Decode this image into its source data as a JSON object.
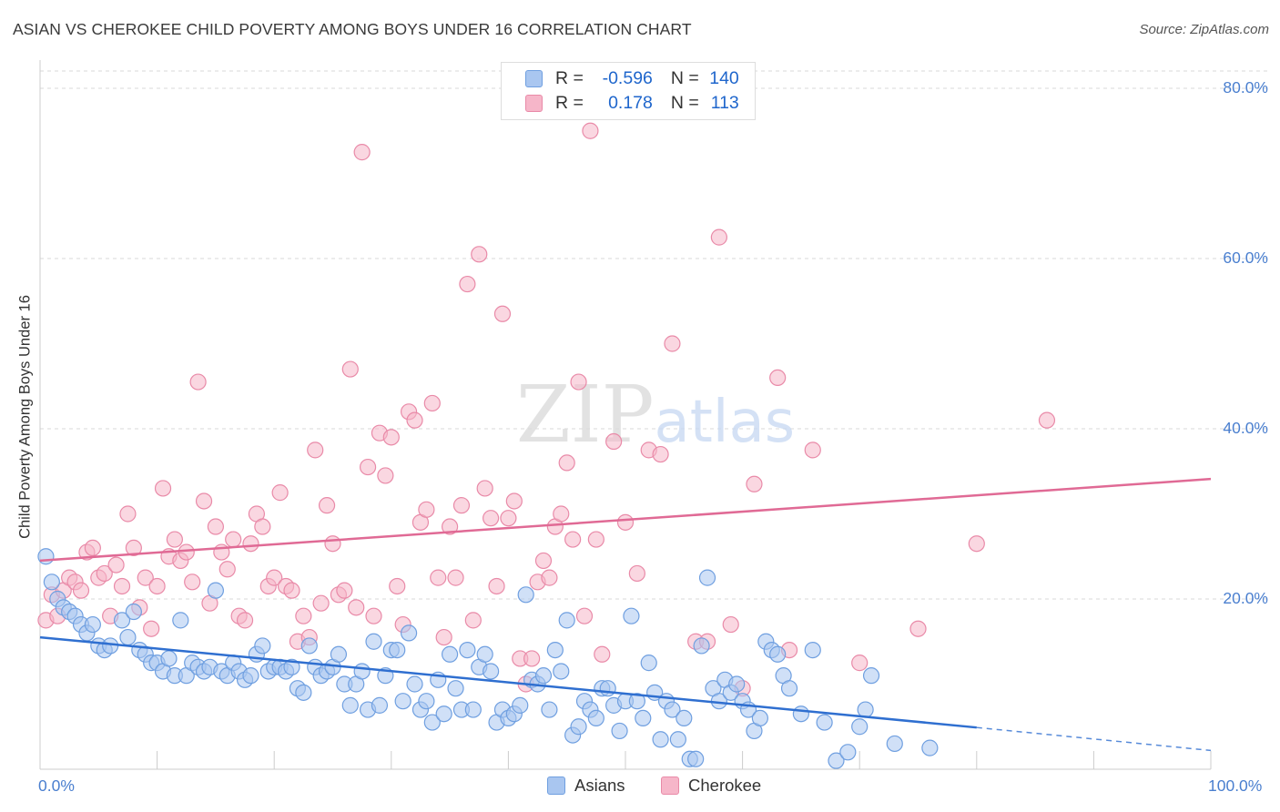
{
  "title": "ASIAN VS CHEROKEE CHILD POVERTY AMONG BOYS UNDER 16 CORRELATION CHART",
  "source": "Source: ZipAtlas.com",
  "legend": {
    "rows": [
      {
        "r_label": "R =",
        "r_value": "-0.596",
        "n_label": "N =",
        "n_value": "140"
      },
      {
        "r_label": "R =",
        "r_value": "0.178",
        "n_label": "N =",
        "n_value": "113"
      }
    ]
  },
  "colors": {
    "asians_fill": "#a9c6f0",
    "asians_stroke": "#6f9fe0",
    "asians_line": "#2f6fd0",
    "cherokee_fill": "#f6b6c9",
    "cherokee_stroke": "#e98aa8",
    "cherokee_line": "#e06a95",
    "tick_label": "#4a7fcf",
    "grid": "#d9d9d9"
  },
  "chart_data": {
    "type": "scatter",
    "title": "ASIAN VS CHEROKEE CHILD POVERTY AMONG BOYS UNDER 16 CORRELATION CHART",
    "xlabel": "",
    "ylabel": "Child Poverty Among Boys Under 16",
    "xlim": [
      0,
      100
    ],
    "ylim": [
      0,
      80
    ],
    "x_tick_labels": [
      "0.0%",
      "100.0%"
    ],
    "y_ticks": [
      20,
      40,
      60,
      80
    ],
    "y_tick_labels": [
      "20.0%",
      "40.0%",
      "60.0%",
      "80.0%"
    ],
    "grid": true,
    "legend_position": "bottom",
    "watermark": "ZIPatlas",
    "series": [
      {
        "name": "Asians",
        "r": -0.596,
        "n": 140,
        "trend": {
          "x0": 0,
          "y0": 15.5,
          "x1": 80,
          "y1": 4.9,
          "dashed_to": [
            100,
            2.2
          ]
        },
        "points": [
          [
            0.5,
            25
          ],
          [
            1,
            22
          ],
          [
            1.5,
            20
          ],
          [
            2,
            19
          ],
          [
            2.5,
            18.5
          ],
          [
            3,
            18
          ],
          [
            3.5,
            17
          ],
          [
            4,
            16
          ],
          [
            4.5,
            17
          ],
          [
            5,
            14.5
          ],
          [
            5.5,
            14
          ],
          [
            6,
            14.5
          ],
          [
            7,
            17.5
          ],
          [
            7.5,
            15.5
          ],
          [
            8,
            18.5
          ],
          [
            8.5,
            14
          ],
          [
            9,
            13.5
          ],
          [
            9.5,
            12.5
          ],
          [
            10,
            12.5
          ],
          [
            10.5,
            11.5
          ],
          [
            11,
            13
          ],
          [
            11.5,
            11
          ],
          [
            12,
            17.5
          ],
          [
            12.5,
            11
          ],
          [
            13,
            12.5
          ],
          [
            13.5,
            12
          ],
          [
            14,
            11.5
          ],
          [
            14.5,
            12
          ],
          [
            15,
            21
          ],
          [
            15.5,
            11.5
          ],
          [
            16,
            11
          ],
          [
            16.5,
            12.5
          ],
          [
            17,
            11.5
          ],
          [
            17.5,
            10.5
          ],
          [
            18,
            11
          ],
          [
            18.5,
            13.5
          ],
          [
            19,
            14.5
          ],
          [
            19.5,
            11.5
          ],
          [
            20,
            12
          ],
          [
            20.5,
            12
          ],
          [
            21,
            11.5
          ],
          [
            21.5,
            12
          ],
          [
            22,
            9.5
          ],
          [
            22.5,
            9
          ],
          [
            23,
            14.5
          ],
          [
            23.5,
            12
          ],
          [
            24,
            11
          ],
          [
            24.5,
            11.5
          ],
          [
            25,
            12
          ],
          [
            25.5,
            13.5
          ],
          [
            26,
            10
          ],
          [
            26.5,
            7.5
          ],
          [
            27,
            10
          ],
          [
            27.5,
            11.5
          ],
          [
            28,
            7
          ],
          [
            28.5,
            15
          ],
          [
            29,
            7.5
          ],
          [
            29.5,
            11
          ],
          [
            30,
            14
          ],
          [
            30.5,
            14
          ],
          [
            31,
            8
          ],
          [
            31.5,
            16
          ],
          [
            32,
            10
          ],
          [
            32.5,
            7
          ],
          [
            33,
            8
          ],
          [
            33.5,
            5.5
          ],
          [
            34,
            10.5
          ],
          [
            34.5,
            6.5
          ],
          [
            35,
            13.5
          ],
          [
            35.5,
            9.5
          ],
          [
            36,
            7
          ],
          [
            36.5,
            14
          ],
          [
            37,
            7
          ],
          [
            37.5,
            12
          ],
          [
            38,
            13.5
          ],
          [
            38.5,
            11.5
          ],
          [
            39,
            5.5
          ],
          [
            39.5,
            7
          ],
          [
            40,
            6
          ],
          [
            40.5,
            6.5
          ],
          [
            41,
            7.5
          ],
          [
            41.5,
            20.5
          ],
          [
            42,
            10.5
          ],
          [
            42.5,
            10
          ],
          [
            43,
            11
          ],
          [
            43.5,
            7
          ],
          [
            44,
            14
          ],
          [
            44.5,
            11.5
          ],
          [
            45,
            17.5
          ],
          [
            45.5,
            4
          ],
          [
            46,
            5
          ],
          [
            46.5,
            8
          ],
          [
            47,
            7
          ],
          [
            47.5,
            6
          ],
          [
            48,
            9.5
          ],
          [
            48.5,
            9.5
          ],
          [
            49,
            7.5
          ],
          [
            49.5,
            4.5
          ],
          [
            50,
            8
          ],
          [
            50.5,
            18
          ],
          [
            51,
            8
          ],
          [
            51.5,
            6
          ],
          [
            52,
            12.5
          ],
          [
            52.5,
            9
          ],
          [
            53,
            3.5
          ],
          [
            53.5,
            8
          ],
          [
            54,
            7
          ],
          [
            54.5,
            3.5
          ],
          [
            55,
            6
          ],
          [
            55.5,
            1.2
          ],
          [
            56,
            1.2
          ],
          [
            56.5,
            14.5
          ],
          [
            57,
            22.5
          ],
          [
            57.5,
            9.5
          ],
          [
            58,
            8
          ],
          [
            58.5,
            10.5
          ],
          [
            59,
            9
          ],
          [
            59.5,
            10
          ],
          [
            60,
            8
          ],
          [
            60.5,
            7
          ],
          [
            61,
            4.5
          ],
          [
            61.5,
            6
          ],
          [
            62,
            15
          ],
          [
            62.5,
            14
          ],
          [
            63,
            13.5
          ],
          [
            63.5,
            11
          ],
          [
            64,
            9.5
          ],
          [
            65,
            6.5
          ],
          [
            66,
            14
          ],
          [
            67,
            5.5
          ],
          [
            68,
            1
          ],
          [
            69,
            2
          ],
          [
            70,
            5
          ],
          [
            70.5,
            7
          ],
          [
            71,
            11
          ],
          [
            73,
            3
          ],
          [
            76,
            2.5
          ]
        ]
      },
      {
        "name": "Cherokee",
        "r": 0.178,
        "n": 113,
        "trend": {
          "x0": 0,
          "y0": 24.5,
          "x1": 100,
          "y1": 34.1
        },
        "points": [
          [
            0.5,
            17.5
          ],
          [
            1,
            20.5
          ],
          [
            1.5,
            18
          ],
          [
            2,
            21
          ],
          [
            2.5,
            22.5
          ],
          [
            3,
            22
          ],
          [
            3.5,
            21
          ],
          [
            4,
            25.5
          ],
          [
            4.5,
            26
          ],
          [
            5,
            22.5
          ],
          [
            5.5,
            23
          ],
          [
            6,
            18
          ],
          [
            6.5,
            24
          ],
          [
            7,
            21.5
          ],
          [
            7.5,
            30
          ],
          [
            8,
            26
          ],
          [
            8.5,
            19
          ],
          [
            9,
            22.5
          ],
          [
            9.5,
            16.5
          ],
          [
            10,
            21.5
          ],
          [
            10.5,
            33
          ],
          [
            11,
            25
          ],
          [
            11.5,
            27
          ],
          [
            12,
            24.5
          ],
          [
            12.5,
            25.5
          ],
          [
            13,
            22
          ],
          [
            13.5,
            45.5
          ],
          [
            14,
            31.5
          ],
          [
            14.5,
            19.5
          ],
          [
            15,
            28.5
          ],
          [
            15.5,
            25.5
          ],
          [
            16,
            23.5
          ],
          [
            16.5,
            27
          ],
          [
            17,
            18
          ],
          [
            17.5,
            17.5
          ],
          [
            18,
            26.5
          ],
          [
            18.5,
            30
          ],
          [
            19,
            28.5
          ],
          [
            19.5,
            21.5
          ],
          [
            20,
            22.5
          ],
          [
            20.5,
            32.5
          ],
          [
            21,
            21.5
          ],
          [
            21.5,
            21
          ],
          [
            22,
            15
          ],
          [
            22.5,
            18
          ],
          [
            23,
            15.5
          ],
          [
            23.5,
            37.5
          ],
          [
            24,
            19.5
          ],
          [
            24.5,
            31
          ],
          [
            25,
            26.5
          ],
          [
            25.5,
            20.5
          ],
          [
            26,
            21
          ],
          [
            26.5,
            47
          ],
          [
            27,
            19
          ],
          [
            27.5,
            72.5
          ],
          [
            28,
            35.5
          ],
          [
            28.5,
            18
          ],
          [
            29,
            39.5
          ],
          [
            29.5,
            34.5
          ],
          [
            30,
            39
          ],
          [
            30.5,
            21.5
          ],
          [
            31,
            17
          ],
          [
            31.5,
            42
          ],
          [
            32,
            41
          ],
          [
            32.5,
            29
          ],
          [
            33,
            30.5
          ],
          [
            33.5,
            43
          ],
          [
            34,
            22.5
          ],
          [
            34.5,
            15.5
          ],
          [
            35,
            28.5
          ],
          [
            35.5,
            22.5
          ],
          [
            36,
            31
          ],
          [
            36.5,
            57
          ],
          [
            37,
            17.5
          ],
          [
            37.5,
            60.5
          ],
          [
            38,
            33
          ],
          [
            38.5,
            29.5
          ],
          [
            39,
            21.5
          ],
          [
            39.5,
            53.5
          ],
          [
            40,
            29.5
          ],
          [
            40.5,
            31.5
          ],
          [
            41,
            13
          ],
          [
            41.5,
            10
          ],
          [
            42,
            13
          ],
          [
            42.5,
            22
          ],
          [
            43,
            24.5
          ],
          [
            43.5,
            22.5
          ],
          [
            44,
            28.5
          ],
          [
            44.5,
            30
          ],
          [
            45,
            36
          ],
          [
            45.5,
            27
          ],
          [
            46,
            45.5
          ],
          [
            46.5,
            18
          ],
          [
            47,
            75
          ],
          [
            47.5,
            27
          ],
          [
            48,
            13.5
          ],
          [
            49,
            38.5
          ],
          [
            50,
            29
          ],
          [
            51,
            23
          ],
          [
            52,
            37.5
          ],
          [
            53,
            37
          ],
          [
            54,
            50
          ],
          [
            56,
            15
          ],
          [
            57,
            15
          ],
          [
            58,
            62.5
          ],
          [
            59,
            17
          ],
          [
            60,
            9.5
          ],
          [
            61,
            33.5
          ],
          [
            63,
            46
          ],
          [
            64,
            14
          ],
          [
            66,
            37.5
          ],
          [
            70,
            12.5
          ],
          [
            75,
            16.5
          ],
          [
            80,
            26.5
          ],
          [
            86,
            41
          ]
        ]
      }
    ]
  },
  "bottom_legend": {
    "items": [
      {
        "label": "Asians"
      },
      {
        "label": "Cherokee"
      }
    ]
  }
}
